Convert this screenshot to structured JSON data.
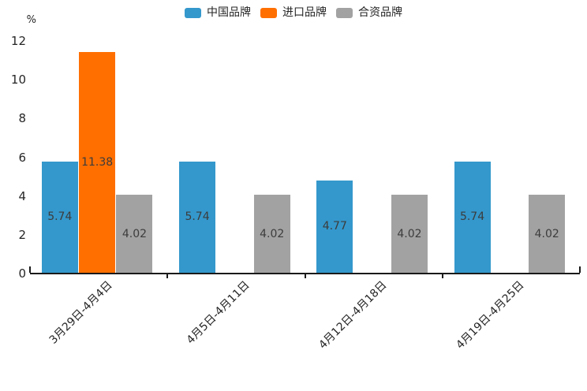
{
  "chart_data": {
    "type": "bar",
    "title": "",
    "xlabel": "",
    "ylabel": "%",
    "ylim": [
      0,
      12
    ],
    "grid": false,
    "legend_position": "top",
    "bar_value_labels_visible": true,
    "categories": [
      "3月29日-4月4日",
      "4月5日-4月11日",
      "4月12日-4月18日",
      "4月19日-4月25日"
    ],
    "series": [
      {
        "name": "中国品牌",
        "color": "#3498cc",
        "values": [
          5.74,
          5.74,
          4.77,
          5.74
        ]
      },
      {
        "name": "进口品牌",
        "color": "#ff6f00",
        "values": [
          11.38,
          null,
          null,
          null
        ]
      },
      {
        "name": "合资品牌",
        "color": "#a2a2a2",
        "values": [
          4.02,
          4.02,
          4.02,
          4.02
        ]
      }
    ],
    "y_axis": {
      "label": "%",
      "ticks": [
        0,
        2,
        4,
        6,
        8,
        10,
        12
      ],
      "min": 0,
      "max": 12
    }
  },
  "colors": {
    "axis_line": "#1a1a1a",
    "tick_label": "#262626",
    "bar_value_label": "#3c3c3c",
    "background": "#ffffff"
  }
}
